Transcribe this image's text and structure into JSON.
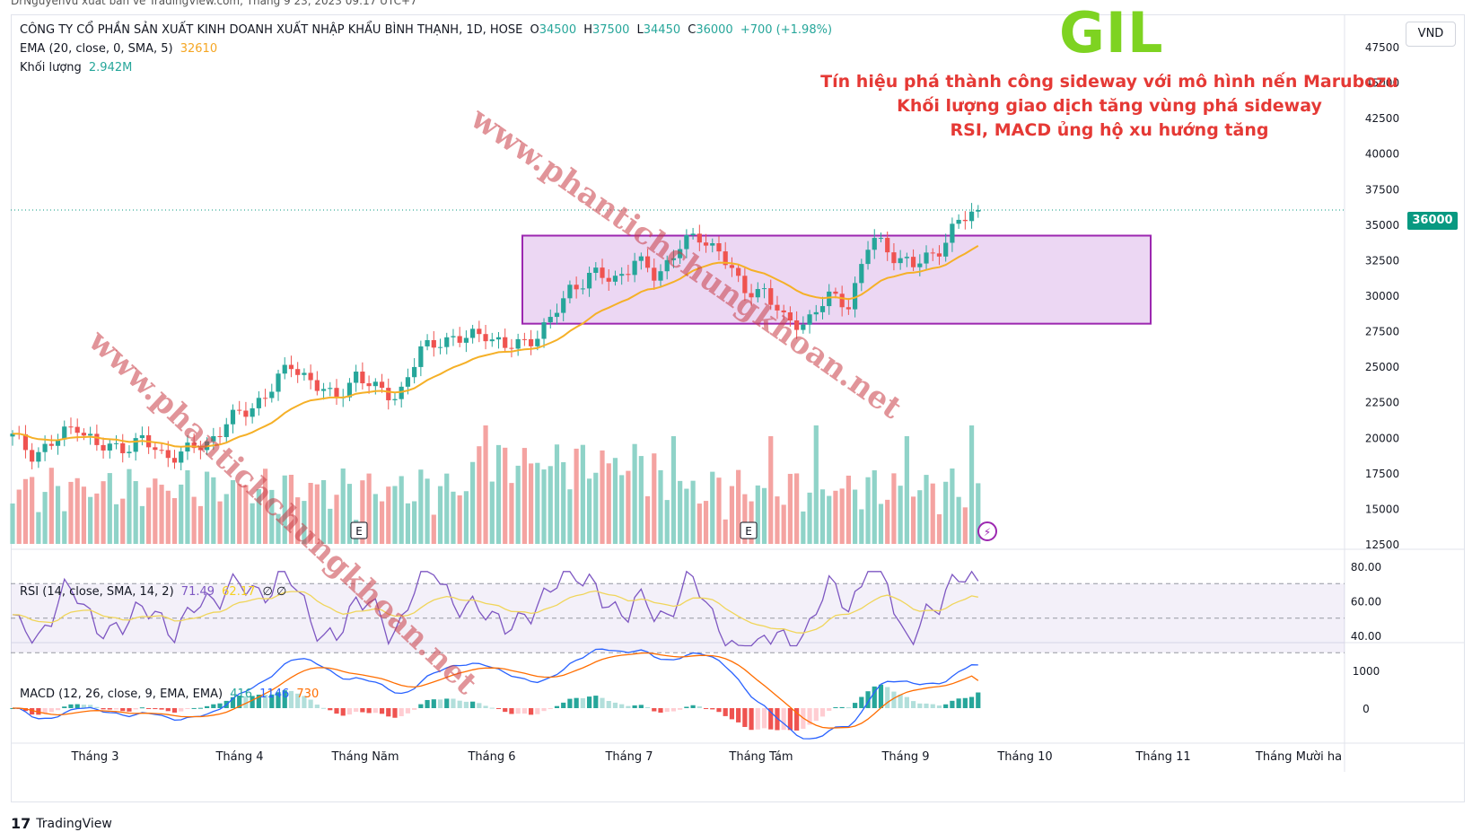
{
  "header": {
    "top_strip": "DrNguyenvu xuất bản về TradingView.com, Tháng 9 23, 2023 09:17 UTC+7",
    "symbol_line": {
      "name": "CÔNG TY CỔ PHẦN SẢN XUẤT KINH DOANH XUẤT NHẬP KHẨU BÌNH THẠNH, 1D, HOSE",
      "open_label": "O",
      "open": "34500",
      "high_label": "H",
      "high": "37500",
      "low_label": "L",
      "low": "34450",
      "close_label": "C",
      "close": "36000",
      "change": "+700 (+1.98%)"
    },
    "ema_line": {
      "label": "EMA (20, close, 0, SMA, 5)",
      "value": "32610"
    },
    "volume_line": {
      "label": "Khối lượng",
      "value": "2.942M"
    },
    "currency": "VND"
  },
  "annotations": {
    "ticker": "GIL",
    "notes": [
      "Tín hiệu phá thành công sideway với mô hình nến Marubozu",
      "Khối lượng giao dịch tăng vùng phá sideway",
      "RSI, MACD ủng hộ xu hướng tăng"
    ],
    "watermark": "www.phantichchungkhoan.net"
  },
  "price_axis": {
    "ticks": [
      "47500",
      "45000",
      "42500",
      "40000",
      "37500",
      "35000",
      "32500",
      "30000",
      "27500",
      "25000",
      "22500",
      "20000",
      "17500",
      "15000",
      "12500"
    ],
    "last_price": "36000"
  },
  "rsi": {
    "label": "RSI (14, close, SMA, 14, 2)",
    "value": "71.49",
    "sma_value": "62.17",
    "extra": "∅ ∅",
    "ticks": [
      "80.00",
      "60.00",
      "40.00"
    ]
  },
  "macd": {
    "label": "MACD (12, 26, close, 9, EMA, EMA)",
    "hist_value": "416",
    "macd_value": "1146",
    "signal_value": "730",
    "ticks": [
      "1000",
      "0"
    ]
  },
  "time_axis": {
    "labels": [
      "Tháng 3",
      "Tháng 4",
      "Tháng Năm",
      "Tháng 6",
      "Tháng 7",
      "Tháng Tám",
      "Tháng 9",
      "Tháng 10",
      "Tháng 11",
      "Tháng Mười ha"
    ]
  },
  "earnings_markers": [
    "E",
    "E"
  ],
  "footer": {
    "brand": "TradingView"
  },
  "colors": {
    "up": "#26a69a",
    "down": "#ef5350",
    "up_vol": "#8fd3c8",
    "down_vol": "#f4a3a1",
    "ema": "#f5b027",
    "rsi": "#7e57c2",
    "rsi_sma": "#f0d55a",
    "macd": "#2962ff",
    "signal": "#ff6d00",
    "box_fill": "#e6c9ef",
    "box_stroke": "#9c27b0"
  },
  "chart_data": {
    "type": "candlestick",
    "box": {
      "from": "Tháng 6",
      "to": "Tháng 10",
      "high": 34200,
      "low": 28000
    },
    "ema_last": 32610,
    "close_path": [
      20000,
      18800,
      19700,
      21000,
      19200,
      19300,
      19800,
      18700,
      19000,
      19400,
      21200,
      21800,
      23500,
      25000,
      24000,
      22500,
      24500,
      23200,
      23000,
      26000,
      27000,
      26800,
      27500,
      26200,
      26800,
      28000,
      30500,
      31500,
      31000,
      32500,
      31200,
      33500,
      34000,
      33200,
      30200,
      30500,
      28000,
      28200,
      29800,
      29500,
      34000,
      33000,
      32000,
      33000,
      35000,
      36000
    ]
  }
}
